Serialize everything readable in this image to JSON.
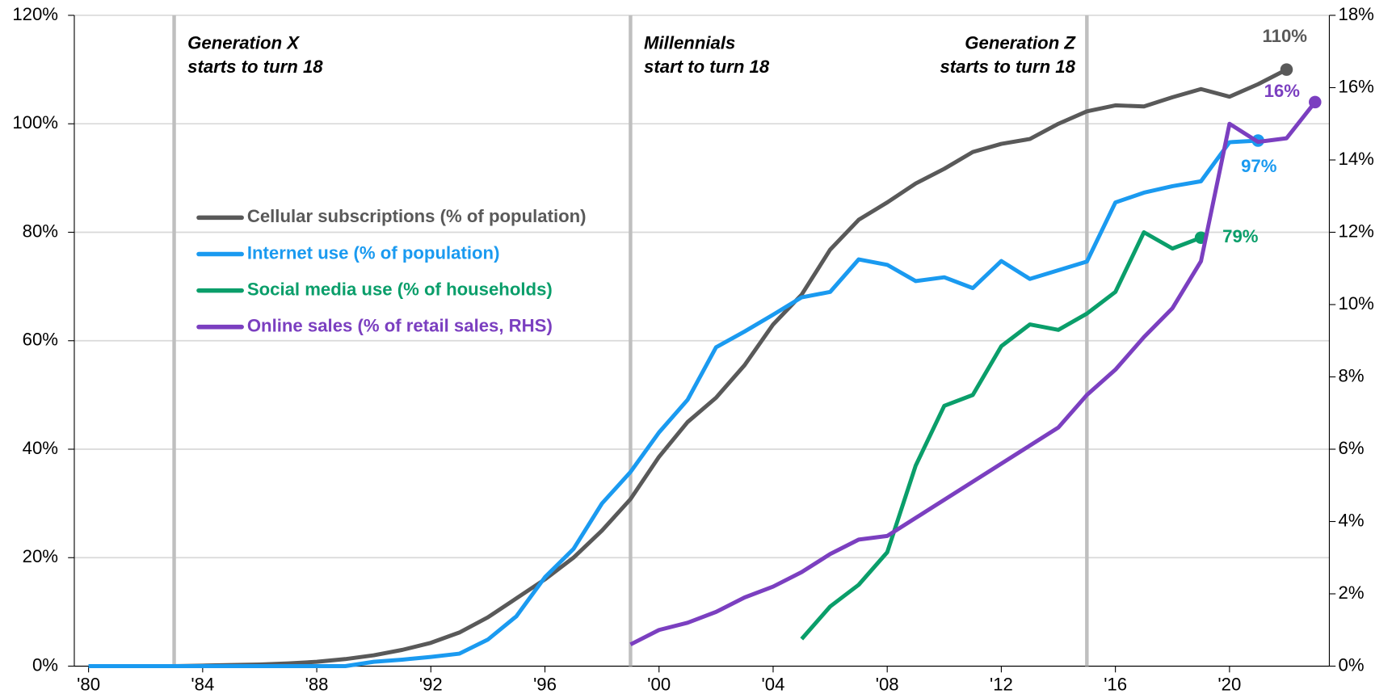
{
  "chart_data": {
    "type": "line",
    "x": [
      1980,
      1981,
      1982,
      1983,
      1984,
      1985,
      1986,
      1987,
      1988,
      1989,
      1990,
      1991,
      1992,
      1993,
      1994,
      1995,
      1996,
      1997,
      1998,
      1999,
      2000,
      2001,
      2002,
      2003,
      2004,
      2005,
      2006,
      2007,
      2008,
      2009,
      2010,
      2011,
      2012,
      2013,
      2014,
      2015,
      2016,
      2017,
      2018,
      2019,
      2020,
      2021,
      2022,
      2023
    ],
    "xlim": [
      1979.5,
      2023.5
    ],
    "xticks": [
      {
        "value": 1980,
        "label": "'80"
      },
      {
        "value": 1984,
        "label": "'84"
      },
      {
        "value": 1988,
        "label": "'88"
      },
      {
        "value": 1992,
        "label": "'92"
      },
      {
        "value": 1996,
        "label": "'96"
      },
      {
        "value": 2000,
        "label": "'00"
      },
      {
        "value": 2004,
        "label": "'04"
      },
      {
        "value": 2008,
        "label": "'08"
      },
      {
        "value": 2012,
        "label": "'12"
      },
      {
        "value": 2016,
        "label": "'16"
      },
      {
        "value": 2020,
        "label": "'20"
      }
    ],
    "ylim": [
      0,
      120
    ],
    "yticks": [
      {
        "value": 0,
        "label": "0%"
      },
      {
        "value": 20,
        "label": "20%"
      },
      {
        "value": 40,
        "label": "40%"
      },
      {
        "value": 60,
        "label": "60%"
      },
      {
        "value": 80,
        "label": "80%"
      },
      {
        "value": 100,
        "label": "100%"
      },
      {
        "value": 120,
        "label": "120%"
      }
    ],
    "y2lim": [
      0,
      18
    ],
    "y2ticks": [
      {
        "value": 0,
        "label": "0%"
      },
      {
        "value": 2,
        "label": "2%"
      },
      {
        "value": 4,
        "label": "4%"
      },
      {
        "value": 6,
        "label": "6%"
      },
      {
        "value": 8,
        "label": "8%"
      },
      {
        "value": 10,
        "label": "10%"
      },
      {
        "value": 12,
        "label": "12%"
      },
      {
        "value": 14,
        "label": "14%"
      },
      {
        "value": 16,
        "label": "16%"
      },
      {
        "value": 18,
        "label": "18%"
      }
    ],
    "grid": true,
    "series": [
      {
        "name": "Cellular subscriptions (% of population)",
        "color": "#595959",
        "values": [
          0,
          0,
          0,
          0,
          0.1,
          0.2,
          0.3,
          0.5,
          0.8,
          1.3,
          2,
          3,
          4.3,
          6.2,
          9,
          12.5,
          16,
          20,
          25,
          30.8,
          38.6,
          45,
          49.5,
          55.5,
          63,
          68.5,
          76.8,
          82.3,
          85.5,
          89,
          91.7,
          94.8,
          96.3,
          97.2,
          100,
          102.3,
          103.4,
          103.2,
          104.9,
          106.4,
          105,
          107.3,
          110,
          null
        ],
        "value_labels": [
          null,
          null,
          null,
          null,
          null,
          null,
          null,
          null,
          null,
          null,
          null,
          null,
          null,
          null,
          null,
          null,
          null,
          null,
          null,
          null,
          null,
          null,
          null,
          null,
          null,
          null,
          null,
          null,
          null,
          null,
          null,
          null,
          null,
          null,
          null,
          null,
          null,
          null,
          null,
          null,
          null,
          null,
          "110%",
          null
        ]
      },
      {
        "name": "Internet use (% of population)",
        "color": "#1a9af0",
        "values": [
          0,
          0,
          0,
          0,
          0,
          0,
          0,
          0,
          0,
          0,
          0.8,
          1.2,
          1.7,
          2.3,
          4.9,
          9.2,
          16.4,
          21.6,
          30,
          35.8,
          43.1,
          49.1,
          58.8,
          61.7,
          64.8,
          68,
          69,
          75,
          74,
          71,
          71.7,
          69.7,
          74.7,
          71.4,
          73,
          74.6,
          85.5,
          87.3,
          88.5,
          89.4,
          96.6,
          96.9,
          null,
          null
        ],
        "value_labels": [
          null,
          null,
          null,
          null,
          null,
          null,
          null,
          null,
          null,
          null,
          null,
          null,
          null,
          null,
          null,
          null,
          null,
          null,
          null,
          null,
          null,
          null,
          null,
          null,
          null,
          null,
          null,
          null,
          null,
          null,
          null,
          null,
          null,
          null,
          null,
          null,
          null,
          null,
          null,
          null,
          null,
          "97%",
          null,
          null
        ]
      },
      {
        "name": "Social media use (% of households)",
        "color": "#0a9e6a",
        "values": [
          null,
          null,
          null,
          null,
          null,
          null,
          null,
          null,
          null,
          null,
          null,
          null,
          null,
          null,
          null,
          null,
          null,
          null,
          null,
          null,
          null,
          null,
          null,
          null,
          null,
          5,
          11,
          15,
          21,
          37,
          48,
          50,
          59,
          63,
          62,
          65,
          69,
          80,
          77,
          79,
          null,
          null,
          null,
          null
        ],
        "value_labels": [
          null,
          null,
          null,
          null,
          null,
          null,
          null,
          null,
          null,
          null,
          null,
          null,
          null,
          null,
          null,
          null,
          null,
          null,
          null,
          null,
          null,
          null,
          null,
          null,
          null,
          null,
          null,
          null,
          null,
          null,
          null,
          null,
          null,
          null,
          null,
          null,
          null,
          null,
          null,
          "79%",
          null,
          null,
          null,
          null
        ]
      },
      {
        "name": "Online sales (% of retail sales, RHS)",
        "color": "#7b3fc0",
        "axis": "y2",
        "values": [
          null,
          null,
          null,
          null,
          null,
          null,
          null,
          null,
          null,
          null,
          null,
          null,
          null,
          null,
          null,
          null,
          null,
          null,
          null,
          0.6,
          1.0,
          1.2,
          1.5,
          1.9,
          2.2,
          2.6,
          3.1,
          3.5,
          3.6,
          4.1,
          4.6,
          5.1,
          5.6,
          6.1,
          6.6,
          7.5,
          8.2,
          9.1,
          9.9,
          11.2,
          15.0,
          14.5,
          14.6,
          15.6
        ],
        "value_labels": [
          null,
          null,
          null,
          null,
          null,
          null,
          null,
          null,
          null,
          null,
          null,
          null,
          null,
          null,
          null,
          null,
          null,
          null,
          null,
          null,
          null,
          null,
          null,
          null,
          null,
          null,
          null,
          null,
          null,
          null,
          null,
          null,
          null,
          null,
          null,
          null,
          null,
          null,
          null,
          null,
          null,
          null,
          null,
          "16%"
        ]
      }
    ],
    "annotations": [
      {
        "x": 1983,
        "lines": [
          "Generation X",
          "starts to turn 18"
        ]
      },
      {
        "x": 1999,
        "lines": [
          "Millennials",
          "start to turn 18"
        ]
      },
      {
        "x": 2015,
        "lines": [
          "Generation Z",
          "starts to turn 18"
        ]
      }
    ]
  }
}
